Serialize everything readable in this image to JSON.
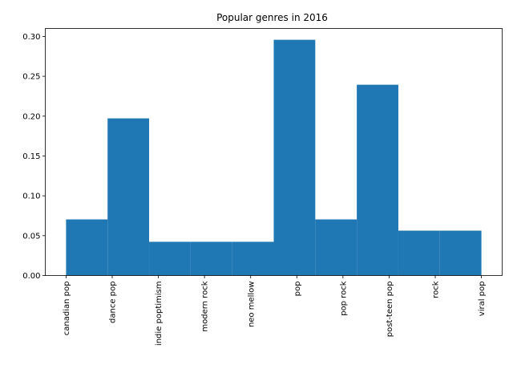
{
  "chart_data": {
    "type": "bar",
    "title": "Popular genres in 2016",
    "xlabel": "",
    "ylabel": "",
    "categories": [
      "canadian pop",
      "dance pop",
      "indie poptimism",
      "modern rock",
      "neo mellow",
      "pop",
      "pop rock",
      "post-teen pop",
      "rock",
      "viral pop"
    ],
    "bars": [
      {
        "start": 0.0,
        "end": 0.9,
        "value": 0.0704
      },
      {
        "start": 0.9,
        "end": 1.8,
        "value": 0.1972
      },
      {
        "start": 1.8,
        "end": 2.7,
        "value": 0.0423
      },
      {
        "start": 2.7,
        "end": 3.6,
        "value": 0.0423
      },
      {
        "start": 3.6,
        "end": 4.5,
        "value": 0.0423
      },
      {
        "start": 4.5,
        "end": 5.4,
        "value": 0.2958
      },
      {
        "start": 5.4,
        "end": 6.3,
        "value": 0.0704
      },
      {
        "start": 6.3,
        "end": 7.2,
        "value": 0.2394
      },
      {
        "start": 7.2,
        "end": 8.1,
        "value": 0.0563
      },
      {
        "start": 8.1,
        "end": 9.0,
        "value": 0.0563
      }
    ],
    "xlim": [
      -0.45,
      9.45
    ],
    "ylim": [
      0,
      0.31
    ],
    "yticks": [
      0.0,
      0.05,
      0.1,
      0.15,
      0.2,
      0.25,
      0.3
    ],
    "ytick_labels": [
      "0.00",
      "0.05",
      "0.10",
      "0.15",
      "0.20",
      "0.25",
      "0.30"
    ],
    "grid": false,
    "legend": "none",
    "bar_color": "#1f77b4"
  }
}
